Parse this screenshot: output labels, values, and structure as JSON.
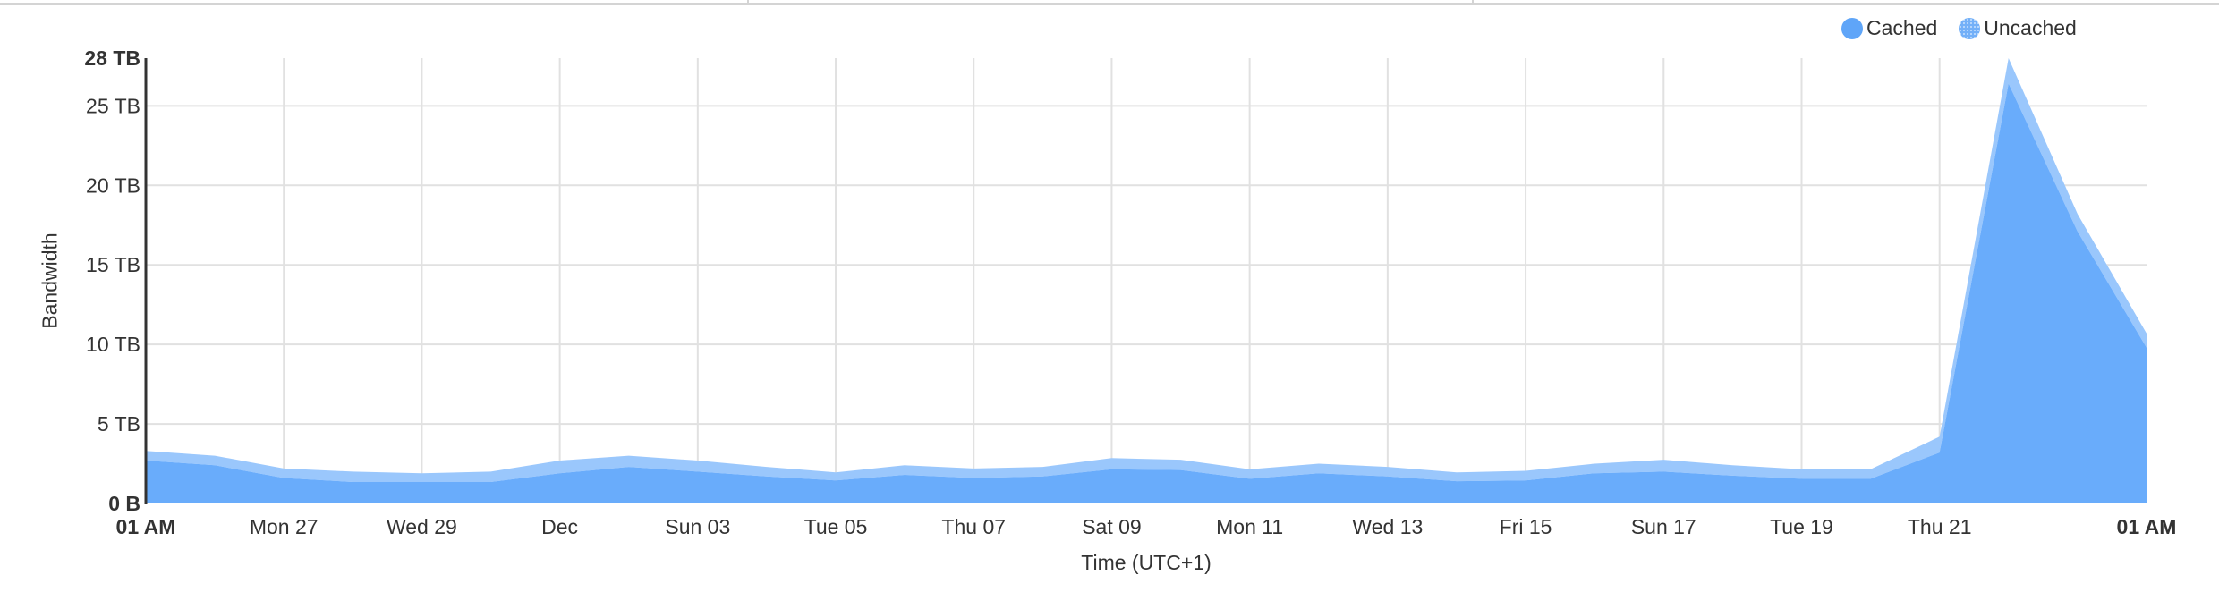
{
  "legend": {
    "items": [
      {
        "label": "Cached",
        "color": "#5fa5f8",
        "pattern": "solid"
      },
      {
        "label": "Uncached",
        "color": "#73b0f8",
        "pattern": "dotted"
      }
    ]
  },
  "axes": {
    "ylabel": "Bandwidth",
    "xlabel": "Time (UTC+1)"
  },
  "colors": {
    "cached_fill": "#69acfb",
    "uncached_fill": "#9ac7fc",
    "grid": "#e1e1e1",
    "axis": "#333333",
    "top_border": "#d4d4d4"
  },
  "chart_data": {
    "type": "area",
    "stacked": true,
    "title": "",
    "xlabel": "Time (UTC+1)",
    "ylabel": "Bandwidth",
    "unit": "TB",
    "ylim": [
      0,
      28
    ],
    "grid": true,
    "legend_position": "top-right",
    "y_ticks": [
      {
        "value": 0,
        "label": "0 B",
        "bold": true
      },
      {
        "value": 5,
        "label": "5 TB",
        "bold": false
      },
      {
        "value": 10,
        "label": "10 TB",
        "bold": false
      },
      {
        "value": 15,
        "label": "15 TB",
        "bold": false
      },
      {
        "value": 20,
        "label": "20 TB",
        "bold": false
      },
      {
        "value": 25,
        "label": "25 TB",
        "bold": false
      },
      {
        "value": 28,
        "label": "28 TB",
        "bold": true
      }
    ],
    "x_ticks": [
      {
        "day": 0,
        "label": "01 AM",
        "bold": true,
        "grid": false
      },
      {
        "day": 2,
        "label": "Mon 27",
        "bold": false,
        "grid": true
      },
      {
        "day": 4,
        "label": "Wed 29",
        "bold": false,
        "grid": true
      },
      {
        "day": 6,
        "label": "Dec",
        "bold": false,
        "grid": true
      },
      {
        "day": 8,
        "label": "Sun 03",
        "bold": false,
        "grid": true
      },
      {
        "day": 10,
        "label": "Tue 05",
        "bold": false,
        "grid": true
      },
      {
        "day": 12,
        "label": "Thu 07",
        "bold": false,
        "grid": true
      },
      {
        "day": 14,
        "label": "Sat 09",
        "bold": false,
        "grid": true
      },
      {
        "day": 16,
        "label": "Mon 11",
        "bold": false,
        "grid": true
      },
      {
        "day": 18,
        "label": "Wed 13",
        "bold": false,
        "grid": true
      },
      {
        "day": 20,
        "label": "Fri 15",
        "bold": false,
        "grid": true
      },
      {
        "day": 22,
        "label": "Sun 17",
        "bold": false,
        "grid": true
      },
      {
        "day": 24,
        "label": "Tue 19",
        "bold": false,
        "grid": true
      },
      {
        "day": 26,
        "label": "Thu 21",
        "bold": false,
        "grid": true
      },
      {
        "day": 29,
        "label": "01 AM",
        "bold": true,
        "grid": false
      }
    ],
    "x": [
      0,
      1,
      2,
      3,
      4,
      5,
      6,
      7,
      8,
      9,
      10,
      11,
      12,
      13,
      14,
      15,
      16,
      17,
      18,
      19,
      20,
      21,
      22,
      23,
      24,
      25,
      26,
      27,
      28,
      29
    ],
    "series": [
      {
        "name": "Cached",
        "values": [
          2.7,
          2.4,
          1.6,
          1.35,
          1.35,
          1.35,
          1.9,
          2.3,
          2.0,
          1.7,
          1.45,
          1.8,
          1.6,
          1.7,
          2.15,
          2.1,
          1.55,
          1.9,
          1.7,
          1.4,
          1.45,
          1.9,
          2.0,
          1.75,
          1.55,
          1.55,
          3.2,
          26.4,
          17.1,
          9.8
        ]
      },
      {
        "name": "Uncached",
        "values": [
          0.6,
          0.6,
          0.6,
          0.65,
          0.55,
          0.65,
          0.8,
          0.7,
          0.7,
          0.6,
          0.5,
          0.6,
          0.6,
          0.6,
          0.7,
          0.65,
          0.6,
          0.6,
          0.6,
          0.55,
          0.6,
          0.6,
          0.75,
          0.65,
          0.6,
          0.6,
          1.0,
          1.6,
          1.1,
          0.9
        ]
      }
    ]
  }
}
